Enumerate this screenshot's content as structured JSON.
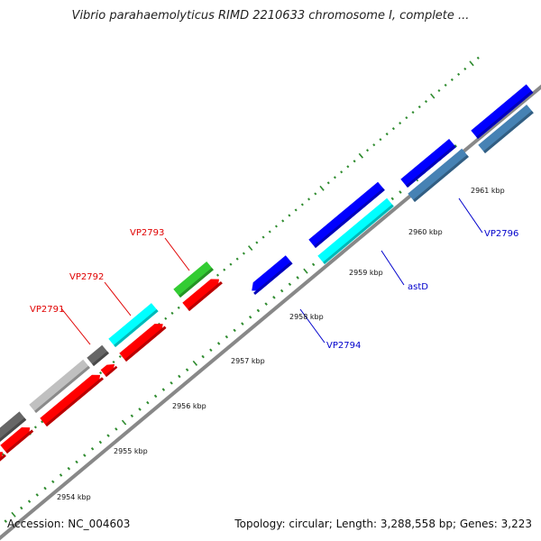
{
  "title": "Vibrio parahaemolyticus RIMD 2210633 chromosome I, complete ...",
  "footer": {
    "accession": "Accession: NC_004603",
    "topology": "Topology: circular; Length: 3,288,558 bp; Genes: 3,223"
  },
  "colors": {
    "backbone": "#888888",
    "ticks": "#2e8b2e",
    "label_red": "#e00000",
    "label_blue": "#0000cc"
  },
  "ticks": [
    {
      "label": "2954 kbp"
    },
    {
      "label": "2955 kbp"
    },
    {
      "label": "2956 kbp"
    },
    {
      "label": "2957 kbp"
    },
    {
      "label": "2958 kbp"
    },
    {
      "label": "2959 kbp"
    },
    {
      "label": "2960 kbp"
    },
    {
      "label": "2961 kbp"
    }
  ],
  "genes": [
    {
      "name": "red gene",
      "color": "#ff0000"
    },
    {
      "name": "red gene",
      "color": "#ff0000"
    },
    {
      "name": "dark gray gene",
      "color": "#666666"
    },
    {
      "name": "light gray gene",
      "color": "#c0c0c0"
    },
    {
      "name": "red gene",
      "color": "#ff0000"
    },
    {
      "name": "small red gene",
      "color": "#ff0000"
    },
    {
      "name": "dark gray gene",
      "color": "#666666"
    },
    {
      "name": "red gene",
      "color": "#ff0000"
    },
    {
      "name": "cyan gene",
      "color": "#00ffff"
    },
    {
      "name": "red gene",
      "color": "#ff0000"
    },
    {
      "name": "green gene",
      "color": "#33cc33"
    },
    {
      "name": "blue gene",
      "color": "#0000ff"
    },
    {
      "name": "blue gene",
      "color": "#0000ff"
    },
    {
      "name": "cyan gene",
      "color": "#00ffff"
    },
    {
      "name": "blue gene",
      "color": "#0000ff"
    },
    {
      "name": "steel blue gene",
      "color": "#4682b4"
    },
    {
      "name": "blue gene",
      "color": "#0000ff"
    },
    {
      "name": "steel blue gene",
      "color": "#4682b4"
    }
  ],
  "labels": [
    {
      "text": "VP2791",
      "color": "#e00000"
    },
    {
      "text": "VP2792",
      "color": "#e00000"
    },
    {
      "text": "VP2793",
      "color": "#e00000"
    },
    {
      "text": "VP2794",
      "color": "#0000cc"
    },
    {
      "text": "astD",
      "color": "#0000cc"
    },
    {
      "text": "VP2796",
      "color": "#0000cc"
    }
  ]
}
